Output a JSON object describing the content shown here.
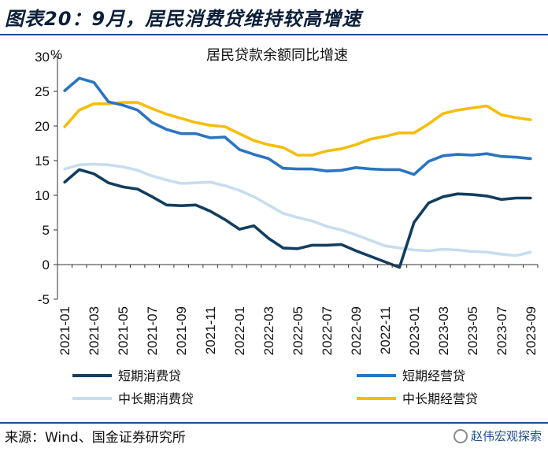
{
  "header": {
    "title": "图表20：9月，居民消费贷维持较高增速"
  },
  "footer": {
    "source": "来源：Wind、国金证券研究所",
    "watermark": "赵伟宏观探索"
  },
  "chart_data": {
    "type": "line",
    "title": "居民贷款余额同比增速",
    "unit": "%",
    "ylim": [
      -5,
      30
    ],
    "yticks": [
      -5,
      0,
      5,
      10,
      15,
      20,
      25,
      30
    ],
    "xtick_labels": [
      "2021-01",
      "2021-03",
      "2021-05",
      "2021-07",
      "2021-09",
      "2021-11",
      "2022-01",
      "2022-03",
      "2022-05",
      "2022-07",
      "2022-09",
      "2022-11",
      "2023-01",
      "2023-03",
      "2023-05",
      "2023-07",
      "2023-09"
    ],
    "x": [
      "2021-01",
      "2021-02",
      "2021-03",
      "2021-04",
      "2021-05",
      "2021-06",
      "2021-07",
      "2021-08",
      "2021-09",
      "2021-10",
      "2021-11",
      "2021-12",
      "2022-01",
      "2022-02",
      "2022-03",
      "2022-04",
      "2022-05",
      "2022-06",
      "2022-07",
      "2022-08",
      "2022-09",
      "2022-10",
      "2022-11",
      "2022-12",
      "2023-01",
      "2023-02",
      "2023-03",
      "2023-04",
      "2023-05",
      "2023-06",
      "2023-07",
      "2023-08",
      "2023-09"
    ],
    "grid": false,
    "legend_position": "bottom",
    "series": [
      {
        "name": "短期消费贷",
        "color": "#123e5f",
        "values": [
          11.9,
          13.7,
          13.1,
          11.8,
          11.2,
          10.9,
          9.8,
          8.6,
          8.5,
          8.6,
          7.7,
          6.5,
          5.1,
          5.6,
          3.8,
          2.4,
          2.3,
          2.8,
          2.8,
          2.9,
          2.0,
          1.2,
          0.4,
          -0.4,
          6.1,
          8.9,
          9.8,
          10.2,
          10.1,
          9.9,
          9.4,
          9.6,
          9.6
        ]
      },
      {
        "name": "短期经营贷",
        "color": "#2a74c2",
        "values": [
          25.1,
          26.9,
          26.3,
          23.5,
          23.0,
          22.3,
          20.5,
          19.5,
          18.9,
          18.9,
          18.3,
          18.4,
          16.6,
          15.9,
          15.3,
          13.9,
          13.8,
          13.8,
          13.5,
          13.6,
          14.0,
          13.8,
          13.7,
          13.7,
          13.0,
          14.9,
          15.7,
          15.9,
          15.8,
          16.0,
          15.6,
          15.5,
          15.3
        ]
      },
      {
        "name": "中长期消费贷",
        "color": "#c7ddf0",
        "values": [
          13.8,
          14.4,
          14.5,
          14.4,
          14.1,
          13.6,
          12.8,
          12.2,
          11.7,
          11.8,
          11.9,
          11.4,
          10.7,
          9.8,
          8.6,
          7.4,
          6.8,
          6.3,
          5.5,
          5.0,
          4.3,
          3.5,
          2.7,
          2.4,
          2.1,
          2.0,
          2.2,
          2.1,
          1.9,
          1.8,
          1.5,
          1.3,
          1.8
        ]
      },
      {
        "name": "中长期经营贷",
        "color": "#f6bd0d",
        "values": [
          19.9,
          22.3,
          23.2,
          23.2,
          23.4,
          23.4,
          22.5,
          21.7,
          21.1,
          20.5,
          20.1,
          19.9,
          18.9,
          17.9,
          17.3,
          16.9,
          15.8,
          15.8,
          16.4,
          16.7,
          17.3,
          18.1,
          18.5,
          19.0,
          19.0,
          20.3,
          21.8,
          22.3,
          22.6,
          22.9,
          21.6,
          21.2,
          20.9
        ]
      }
    ]
  }
}
